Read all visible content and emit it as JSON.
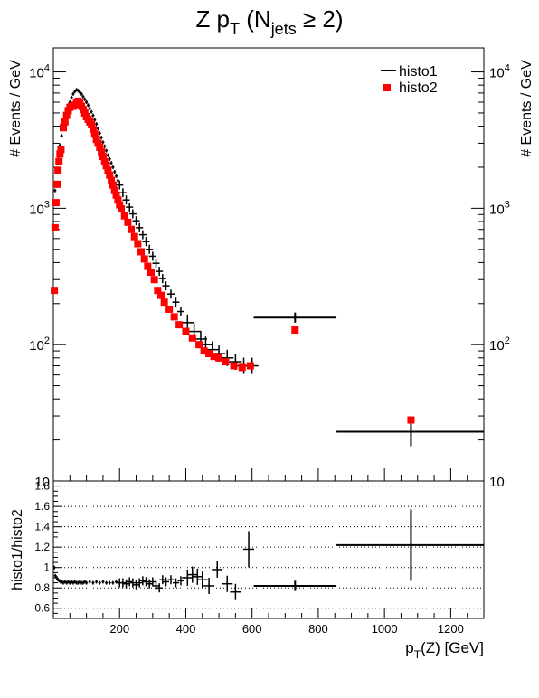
{
  "chart_data": [
    {
      "type": "scatter",
      "title": "Z p_T (N_jets ≥ 2)",
      "ylabel": "# Events / GeV",
      "yscale": "log",
      "xlim": [
        0,
        1300
      ],
      "ylim": [
        10,
        15000
      ],
      "y_ticks_major": [
        "10",
        "10^2",
        "10^3",
        "10^4"
      ],
      "legend": {
        "placement": "top-right",
        "entries": [
          "histo1",
          "histo2"
        ]
      },
      "colors": {
        "histo1": "#000000",
        "histo2": "#ff0000"
      },
      "series": [
        {
          "name": "histo1",
          "style": "errorbar",
          "points": [
            [
              5,
              1350
            ],
            [
              10,
              1900
            ],
            [
              15,
              2400
            ],
            [
              20,
              2900
            ],
            [
              25,
              3400
            ],
            [
              30,
              3950
            ],
            [
              35,
              4500
            ],
            [
              40,
              5000
            ],
            [
              45,
              5500
            ],
            [
              50,
              6000
            ],
            [
              55,
              6500
            ],
            [
              60,
              6900
            ],
            [
              65,
              7200
            ],
            [
              70,
              7400
            ],
            [
              75,
              7300
            ],
            [
              80,
              7100
            ],
            [
              85,
              6900
            ],
            [
              90,
              6600
            ],
            [
              95,
              6300
            ],
            [
              100,
              6000
            ],
            [
              105,
              5700
            ],
            [
              110,
              5400
            ],
            [
              115,
              5100
            ],
            [
              120,
              4800
            ],
            [
              125,
              4450
            ],
            [
              130,
              4150
            ],
            [
              135,
              3850
            ],
            [
              140,
              3550
            ],
            [
              145,
              3300
            ],
            [
              150,
              3050
            ],
            [
              155,
              2850
            ],
            [
              160,
              2650
            ],
            [
              165,
              2450
            ],
            [
              170,
              2300
            ],
            [
              175,
              2150
            ],
            [
              180,
              2000
            ],
            [
              185,
              1850
            ],
            [
              190,
              1720
            ],
            [
              195,
              1600
            ],
            [
              200,
              1480
            ],
            [
              210,
              1300
            ],
            [
              220,
              1150
            ],
            [
              230,
              1020
            ],
            [
              240,
              910
            ],
            [
              250,
              810
            ],
            [
              260,
              720
            ],
            [
              270,
              640
            ],
            [
              280,
              570
            ],
            [
              290,
              500
            ],
            [
              300,
              445
            ],
            [
              310,
              395
            ],
            [
              320,
              345
            ],
            [
              330,
              305
            ],
            [
              340,
              270
            ],
            [
              355,
              235
            ],
            [
              370,
              205
            ],
            [
              385,
              175
            ],
            [
              405,
              145
            ],
            [
              425,
              125
            ],
            [
              445,
              110
            ],
            [
              460,
              100
            ],
            [
              480,
              92
            ],
            [
              500,
              86
            ],
            [
              525,
              80
            ],
            [
              550,
              75
            ],
            [
              575,
              70
            ],
            [
              600,
              70
            ]
          ],
          "wide_bins": [
            {
              "x": 730,
              "xlo": 605,
              "xhi": 855,
              "y": 158,
              "ylo": 145,
              "yhi": 172
            },
            {
              "x": 1080,
              "xlo": 855,
              "xhi": 1300,
              "y": 23,
              "ylo": 18,
              "yhi": 28
            }
          ]
        },
        {
          "name": "histo2",
          "style": "marker",
          "points": [
            [
              3,
              250
            ],
            [
              5,
              720
            ],
            [
              8,
              1100
            ],
            [
              11,
              1500
            ],
            [
              14,
              1900
            ],
            [
              17,
              2200
            ],
            [
              20,
              2500
            ],
            [
              23,
              2700
            ],
            [
              30,
              3900
            ],
            [
              35,
              4300
            ],
            [
              40,
              4800
            ],
            [
              45,
              5200
            ],
            [
              50,
              5500
            ],
            [
              55,
              5600
            ],
            [
              60,
              5600
            ],
            [
              65,
              5700
            ],
            [
              70,
              5900
            ],
            [
              75,
              6100
            ],
            [
              80,
              5900
            ],
            [
              85,
              5600
            ],
            [
              90,
              5300
            ],
            [
              95,
              5000
            ],
            [
              100,
              4700
            ],
            [
              105,
              4500
            ],
            [
              110,
              4300
            ],
            [
              115,
              4100
            ],
            [
              120,
              3800
            ],
            [
              125,
              3500
            ],
            [
              130,
              3200
            ],
            [
              135,
              3000
            ],
            [
              140,
              2800
            ],
            [
              145,
              2600
            ],
            [
              150,
              2400
            ],
            [
              155,
              2200
            ],
            [
              160,
              2050
            ],
            [
              165,
              1900
            ],
            [
              170,
              1750
            ],
            [
              175,
              1600
            ],
            [
              180,
              1480
            ],
            [
              185,
              1350
            ],
            [
              190,
              1250
            ],
            [
              195,
              1150
            ],
            [
              200,
              1060
            ],
            [
              205,
              990
            ],
            [
              215,
              880
            ],
            [
              225,
              790
            ],
            [
              235,
              700
            ],
            [
              245,
              620
            ],
            [
              255,
              550
            ],
            [
              265,
              480
            ],
            [
              275,
              425
            ],
            [
              285,
              375
            ],
            [
              295,
              340
            ],
            [
              305,
              300
            ],
            [
              315,
              250
            ],
            [
              325,
              230
            ],
            [
              335,
              205
            ],
            [
              350,
              182
            ],
            [
              365,
              160
            ],
            [
              380,
              140
            ],
            [
              400,
              125
            ],
            [
              420,
              112
            ],
            [
              440,
              100
            ],
            [
              455,
              90
            ],
            [
              470,
              86
            ],
            [
              485,
              82
            ],
            [
              500,
              80
            ],
            [
              520,
              75
            ],
            [
              545,
              70
            ],
            [
              570,
              68
            ],
            [
              595,
              70
            ]
          ],
          "wide_bins": [
            {
              "x": 730,
              "y": 128
            },
            {
              "x": 1080,
              "y": 28
            }
          ]
        }
      ]
    },
    {
      "type": "scatter",
      "ylabel": "histo1/histo2",
      "xlabel": "p_T(Z) [GeV]",
      "xlim": [
        0,
        1300
      ],
      "ylim": [
        0.5,
        1.85
      ],
      "x_ticks": [
        "200",
        "400",
        "600",
        "800",
        "1000",
        "1200"
      ],
      "y_ticks": [
        "0.6",
        "0.8",
        "1",
        "1.2",
        "1.4",
        "1.6",
        "1.8"
      ],
      "grid": "horizontal dotted",
      "series": [
        {
          "name": "ratio",
          "style": "errorbar",
          "points": [
            [
              3,
              1.0
            ],
            [
              6,
              0.92
            ],
            [
              10,
              0.9
            ],
            [
              14,
              0.88
            ],
            [
              18,
              0.87
            ],
            [
              22,
              0.86
            ],
            [
              26,
              0.86
            ],
            [
              30,
              0.85
            ],
            [
              35,
              0.86
            ],
            [
              40,
              0.85
            ],
            [
              45,
              0.86
            ],
            [
              50,
              0.85
            ],
            [
              55,
              0.86
            ],
            [
              60,
              0.85
            ],
            [
              65,
              0.86
            ],
            [
              70,
              0.85
            ],
            [
              75,
              0.85
            ],
            [
              80,
              0.86
            ],
            [
              85,
              0.85
            ],
            [
              90,
              0.85
            ],
            [
              95,
              0.86
            ],
            [
              100,
              0.85
            ],
            [
              110,
              0.86
            ],
            [
              120,
              0.85
            ],
            [
              130,
              0.86
            ],
            [
              140,
              0.85
            ],
            [
              150,
              0.86
            ],
            [
              160,
              0.85
            ],
            [
              170,
              0.85
            ],
            [
              180,
              0.85
            ],
            [
              190,
              0.86
            ],
            [
              200,
              0.85
            ],
            [
              210,
              0.85
            ],
            [
              220,
              0.84
            ],
            [
              230,
              0.86
            ],
            [
              240,
              0.85
            ],
            [
              250,
              0.83
            ],
            [
              260,
              0.85
            ],
            [
              270,
              0.87
            ],
            [
              280,
              0.86
            ],
            [
              290,
              0.84
            ],
            [
              300,
              0.86
            ],
            [
              310,
              0.82
            ],
            [
              320,
              0.8
            ],
            [
              330,
              0.88
            ],
            [
              340,
              0.86
            ],
            [
              355,
              0.88
            ],
            [
              370,
              0.85
            ],
            [
              385,
              0.87
            ],
            [
              405,
              0.9
            ],
            [
              420,
              0.93
            ],
            [
              435,
              0.91
            ],
            [
              450,
              0.88
            ],
            [
              470,
              0.82
            ],
            [
              495,
              0.98
            ],
            [
              525,
              0.84
            ],
            [
              550,
              0.76
            ],
            [
              590,
              1.18
            ]
          ],
          "wide_bins": [
            {
              "x": 730,
              "xlo": 605,
              "xhi": 855,
              "y": 0.82,
              "ylo": 0.77,
              "yhi": 0.87
            },
            {
              "x": 1080,
              "xlo": 855,
              "xhi": 1300,
              "y": 1.22,
              "ylo": 0.87,
              "yhi": 1.57
            }
          ]
        }
      ]
    }
  ]
}
